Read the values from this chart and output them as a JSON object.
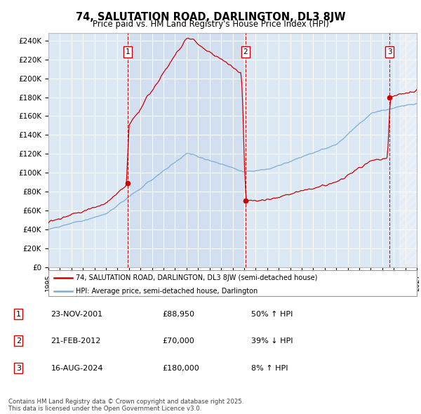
{
  "title": "74, SALUTATION ROAD, DARLINGTON, DL3 8JW",
  "subtitle": "Price paid vs. HM Land Registry's House Price Index (HPI)",
  "ylabel_ticks": [
    "£0",
    "£20K",
    "£40K",
    "£60K",
    "£80K",
    "£100K",
    "£120K",
    "£140K",
    "£160K",
    "£180K",
    "£200K",
    "£220K",
    "£240K"
  ],
  "ytick_values": [
    0,
    20000,
    40000,
    60000,
    80000,
    100000,
    120000,
    140000,
    160000,
    180000,
    200000,
    220000,
    240000
  ],
  "xmin": 1995.0,
  "xmax": 2027.0,
  "ymin": 0,
  "ymax": 248000,
  "purchase_dates": [
    2001.9,
    2012.13,
    2024.63
  ],
  "purchase_prices": [
    88950,
    70000,
    180000
  ],
  "purchase_labels": [
    "1",
    "2",
    "3"
  ],
  "legend_line1": "74, SALUTATION ROAD, DARLINGTON, DL3 8JW (semi-detached house)",
  "legend_line2": "HPI: Average price, semi-detached house, Darlington",
  "line_color_red": "#cc0000",
  "line_color_blue": "#7aaed6",
  "bg_color": "#dde8f5",
  "footer_text": "Contains HM Land Registry data © Crown copyright and database right 2025.\nThis data is licensed under the Open Government Licence v3.0.",
  "table_data": [
    [
      "1",
      "23-NOV-2001",
      "£88,950",
      "50% ↑ HPI"
    ],
    [
      "2",
      "21-FEB-2012",
      "£70,000",
      "39% ↓ HPI"
    ],
    [
      "3",
      "16-AUG-2024",
      "£180,000",
      "8% ↑ HPI"
    ]
  ]
}
